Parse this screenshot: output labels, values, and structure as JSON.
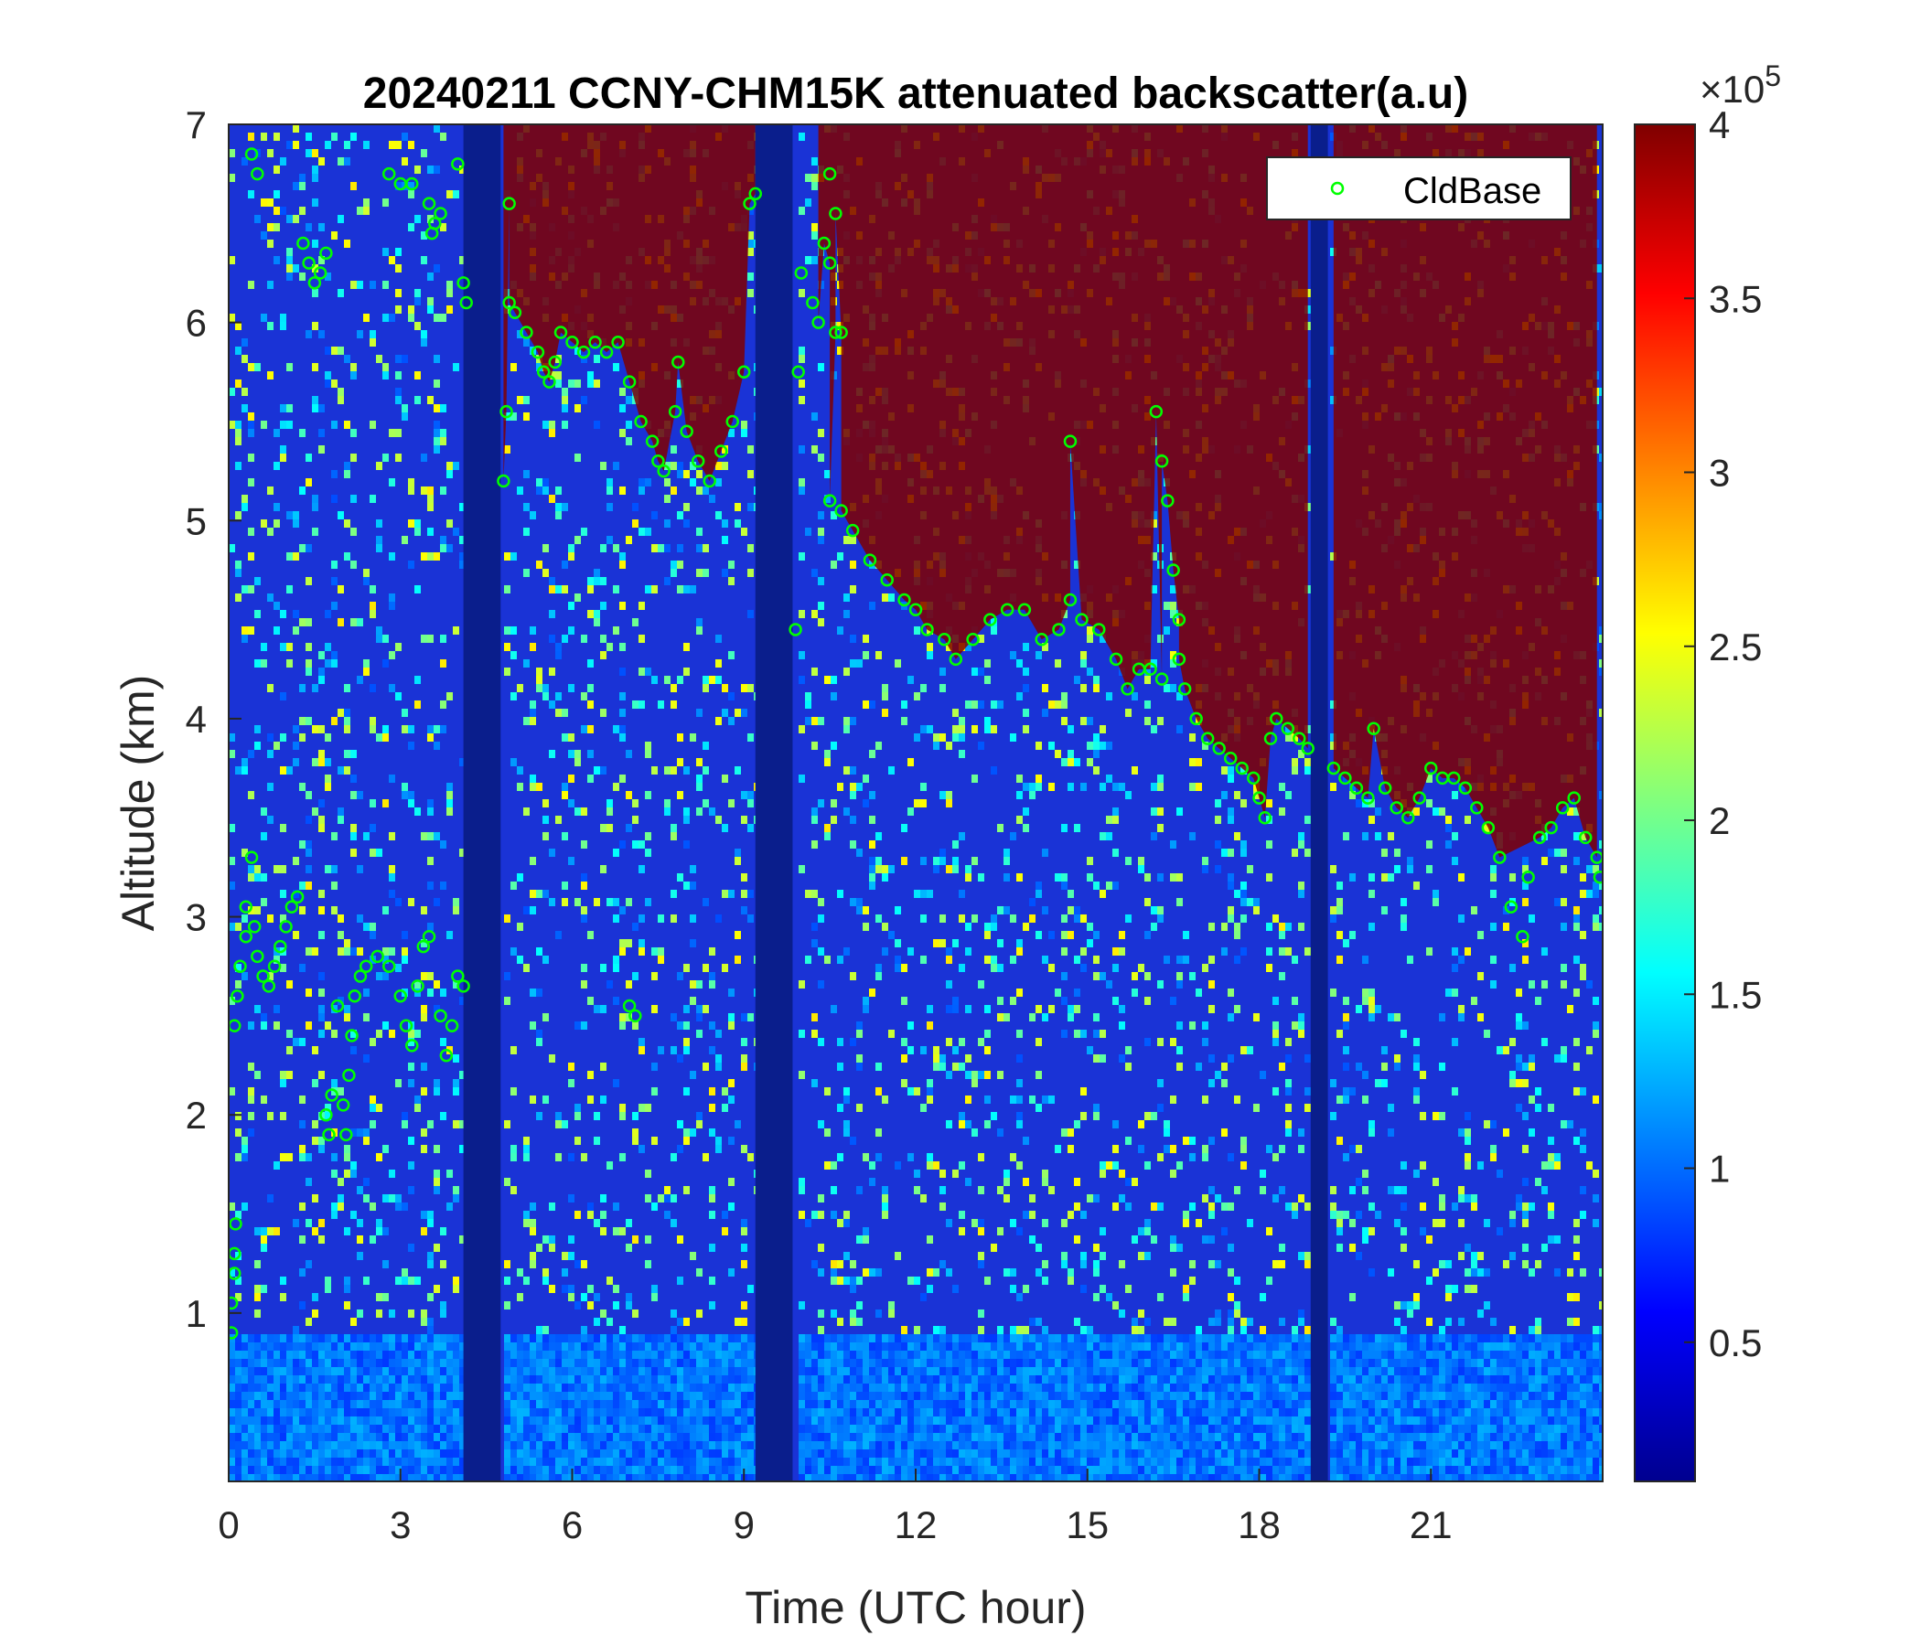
{
  "chart_data": {
    "type": "heatmap",
    "title": "20240211 CCNY-CHM15K attenuated backscatter(a.u)",
    "xlabel": "Time (UTC hour)",
    "ylabel": "Altitude (km)",
    "xlim": [
      0,
      24
    ],
    "ylim": [
      0.15,
      7
    ],
    "xticks": [
      0,
      3,
      6,
      9,
      12,
      15,
      18,
      21
    ],
    "xtick_labels": [
      "0",
      "3",
      "6",
      "9",
      "12",
      "15",
      "18",
      "21"
    ],
    "yticks": [
      1,
      2,
      3,
      4,
      5,
      6,
      7
    ],
    "ytick_labels": [
      "1",
      "2",
      "3",
      "4",
      "5",
      "6",
      "7"
    ],
    "colormap": "jet",
    "colorbar": {
      "min": 10000,
      "max": 400000,
      "ticks": [
        0.5,
        1,
        1.5,
        2,
        2.5,
        3,
        3.5,
        4
      ],
      "tick_labels": [
        "0.5",
        "1",
        "1.5",
        "2",
        "2.5",
        "3",
        "3.5",
        "4"
      ],
      "exponent_label": "×10",
      "exponent_power": "5"
    },
    "no_data_gaps": [
      [
        4.1,
        4.75
      ],
      [
        9.2,
        9.85
      ],
      [
        18.9,
        19.2
      ]
    ],
    "legend": {
      "entries": [
        "CldBase"
      ],
      "location": "top-right"
    },
    "series": [
      {
        "name": "CldBase",
        "marker": "circle",
        "color": "#00ff00",
        "points": [
          [
            0.05,
            0.9
          ],
          [
            0.05,
            1.05
          ],
          [
            0.1,
            1.2
          ],
          [
            0.1,
            1.3
          ],
          [
            0.12,
            1.45
          ],
          [
            0.1,
            2.45
          ],
          [
            0.15,
            2.6
          ],
          [
            0.2,
            2.75
          ],
          [
            0.3,
            2.9
          ],
          [
            0.3,
            3.05
          ],
          [
            0.4,
            3.3
          ],
          [
            0.45,
            2.95
          ],
          [
            0.5,
            2.8
          ],
          [
            0.6,
            2.7
          ],
          [
            0.7,
            2.65
          ],
          [
            0.8,
            2.75
          ],
          [
            0.9,
            2.85
          ],
          [
            1.0,
            2.95
          ],
          [
            1.1,
            3.05
          ],
          [
            1.2,
            3.1
          ],
          [
            0.4,
            6.85
          ],
          [
            0.5,
            6.75
          ],
          [
            1.3,
            6.4
          ],
          [
            1.4,
            6.3
          ],
          [
            1.5,
            6.2
          ],
          [
            1.6,
            6.25
          ],
          [
            1.7,
            6.35
          ],
          [
            1.7,
            2.0
          ],
          [
            1.75,
            1.9
          ],
          [
            1.8,
            2.1
          ],
          [
            1.9,
            2.55
          ],
          [
            2.0,
            2.05
          ],
          [
            2.05,
            1.9
          ],
          [
            2.1,
            2.2
          ],
          [
            2.15,
            2.4
          ],
          [
            2.2,
            2.6
          ],
          [
            2.3,
            2.7
          ],
          [
            2.4,
            2.75
          ],
          [
            2.6,
            2.8
          ],
          [
            2.8,
            2.75
          ],
          [
            2.8,
            6.75
          ],
          [
            3.0,
            6.7
          ],
          [
            3.0,
            2.6
          ],
          [
            3.1,
            2.45
          ],
          [
            3.2,
            2.35
          ],
          [
            3.2,
            6.7
          ],
          [
            3.3,
            2.65
          ],
          [
            3.4,
            2.85
          ],
          [
            3.5,
            2.9
          ],
          [
            3.5,
            6.6
          ],
          [
            3.55,
            6.45
          ],
          [
            3.6,
            6.5
          ],
          [
            3.7,
            6.55
          ],
          [
            3.7,
            2.5
          ],
          [
            3.8,
            2.3
          ],
          [
            3.9,
            2.45
          ],
          [
            4.0,
            2.7
          ],
          [
            4.1,
            2.65
          ],
          [
            4.0,
            6.8
          ],
          [
            4.1,
            6.2
          ],
          [
            4.15,
            6.1
          ],
          [
            4.8,
            5.2
          ],
          [
            4.85,
            5.55
          ],
          [
            4.9,
            6.6
          ],
          [
            4.9,
            6.1
          ],
          [
            5.0,
            6.05
          ],
          [
            5.2,
            5.95
          ],
          [
            5.4,
            5.85
          ],
          [
            5.5,
            5.75
          ],
          [
            5.6,
            5.7
          ],
          [
            5.7,
            5.8
          ],
          [
            5.8,
            5.95
          ],
          [
            6.0,
            5.9
          ],
          [
            6.2,
            5.85
          ],
          [
            6.4,
            5.9
          ],
          [
            6.6,
            5.85
          ],
          [
            6.8,
            5.9
          ],
          [
            7.0,
            5.7
          ],
          [
            7.2,
            5.5
          ],
          [
            7.4,
            5.4
          ],
          [
            7.5,
            5.3
          ],
          [
            7.6,
            5.25
          ],
          [
            7.8,
            5.55
          ],
          [
            7.85,
            5.8
          ],
          [
            8.0,
            5.45
          ],
          [
            8.2,
            5.3
          ],
          [
            8.4,
            5.2
          ],
          [
            8.6,
            5.35
          ],
          [
            8.8,
            5.5
          ],
          [
            9.0,
            5.75
          ],
          [
            9.1,
            6.6
          ],
          [
            9.2,
            6.65
          ],
          [
            7.0,
            2.55
          ],
          [
            7.1,
            2.5
          ],
          [
            9.9,
            4.45
          ],
          [
            9.95,
            5.75
          ],
          [
            10.0,
            6.25
          ],
          [
            10.2,
            6.1
          ],
          [
            10.3,
            6.0
          ],
          [
            10.4,
            6.4
          ],
          [
            10.5,
            6.3
          ],
          [
            10.6,
            5.95
          ],
          [
            10.7,
            5.95
          ],
          [
            10.5,
            6.75
          ],
          [
            10.6,
            6.55
          ],
          [
            10.5,
            5.1
          ],
          [
            10.7,
            5.05
          ],
          [
            10.9,
            4.95
          ],
          [
            11.2,
            4.8
          ],
          [
            11.5,
            4.7
          ],
          [
            11.8,
            4.6
          ],
          [
            12.0,
            4.55
          ],
          [
            12.2,
            4.45
          ],
          [
            12.5,
            4.4
          ],
          [
            12.7,
            4.3
          ],
          [
            13.0,
            4.4
          ],
          [
            13.3,
            4.5
          ],
          [
            13.6,
            4.55
          ],
          [
            13.9,
            4.55
          ],
          [
            14.2,
            4.4
          ],
          [
            14.5,
            4.45
          ],
          [
            14.7,
            4.6
          ],
          [
            14.9,
            4.5
          ],
          [
            15.2,
            4.45
          ],
          [
            15.5,
            4.3
          ],
          [
            15.7,
            4.15
          ],
          [
            15.9,
            4.25
          ],
          [
            16.1,
            4.25
          ],
          [
            16.3,
            4.2
          ],
          [
            14.7,
            5.4
          ],
          [
            16.2,
            5.55
          ],
          [
            16.3,
            5.3
          ],
          [
            16.4,
            5.1
          ],
          [
            16.5,
            4.75
          ],
          [
            16.6,
            4.5
          ],
          [
            16.6,
            4.3
          ],
          [
            16.7,
            4.15
          ],
          [
            16.9,
            4.0
          ],
          [
            17.1,
            3.9
          ],
          [
            17.3,
            3.85
          ],
          [
            17.5,
            3.8
          ],
          [
            17.7,
            3.75
          ],
          [
            17.9,
            3.7
          ],
          [
            18.0,
            3.6
          ],
          [
            18.1,
            3.5
          ],
          [
            18.2,
            3.9
          ],
          [
            18.3,
            4.0
          ],
          [
            18.5,
            3.95
          ],
          [
            18.7,
            3.9
          ],
          [
            18.85,
            3.85
          ],
          [
            19.3,
            3.75
          ],
          [
            19.5,
            3.7
          ],
          [
            19.7,
            3.65
          ],
          [
            19.9,
            3.6
          ],
          [
            20.0,
            3.95
          ],
          [
            20.2,
            3.65
          ],
          [
            20.4,
            3.55
          ],
          [
            20.6,
            3.5
          ],
          [
            20.8,
            3.6
          ],
          [
            21.0,
            3.75
          ],
          [
            21.2,
            3.7
          ],
          [
            21.4,
            3.7
          ],
          [
            21.6,
            3.65
          ],
          [
            21.8,
            3.55
          ],
          [
            22.0,
            3.45
          ],
          [
            22.2,
            3.3
          ],
          [
            22.4,
            3.05
          ],
          [
            22.6,
            2.9
          ],
          [
            22.7,
            3.2
          ],
          [
            22.9,
            3.4
          ],
          [
            23.1,
            3.45
          ],
          [
            23.3,
            3.55
          ],
          [
            23.5,
            3.6
          ],
          [
            23.7,
            3.4
          ],
          [
            23.9,
            3.3
          ],
          [
            23.95,
            3.2
          ]
        ]
      }
    ]
  }
}
